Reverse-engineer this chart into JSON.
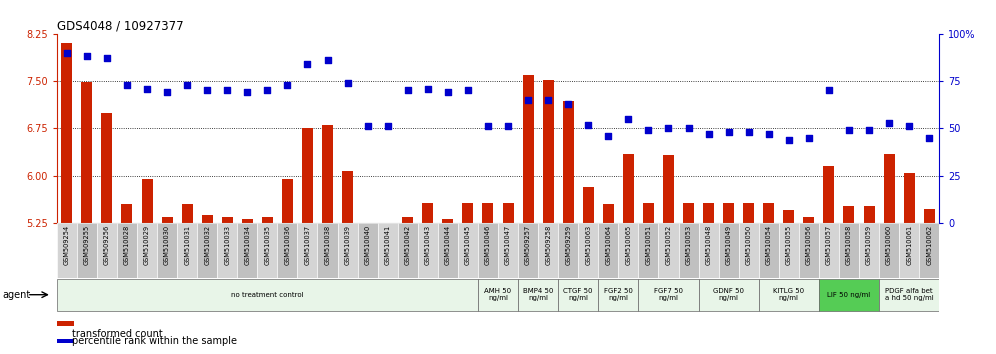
{
  "title": "GDS4048 / 10927377",
  "ylim_left": [
    5.25,
    8.25
  ],
  "ylim_right": [
    0,
    100
  ],
  "yticks_left": [
    5.25,
    6.0,
    6.75,
    7.5,
    8.25
  ],
  "yticks_right": [
    0,
    25,
    50,
    75,
    100
  ],
  "bar_color": "#cc2200",
  "dot_color": "#0000cc",
  "samples": [
    "GSM509254",
    "GSM509255",
    "GSM509256",
    "GSM510028",
    "GSM510029",
    "GSM510030",
    "GSM510031",
    "GSM510032",
    "GSM510033",
    "GSM510034",
    "GSM510035",
    "GSM510036",
    "GSM510037",
    "GSM510038",
    "GSM510039",
    "GSM510040",
    "GSM510041",
    "GSM510042",
    "GSM510043",
    "GSM510044",
    "GSM510045",
    "GSM510046",
    "GSM510047",
    "GSM509257",
    "GSM509258",
    "GSM509259",
    "GSM510063",
    "GSM510064",
    "GSM510065",
    "GSM510051",
    "GSM510052",
    "GSM510053",
    "GSM510048",
    "GSM510049",
    "GSM510050",
    "GSM510054",
    "GSM510055",
    "GSM510056",
    "GSM510057",
    "GSM510058",
    "GSM510059",
    "GSM510060",
    "GSM510061",
    "GSM510062"
  ],
  "bar_values": [
    8.1,
    7.48,
    7.0,
    5.55,
    5.95,
    5.35,
    5.55,
    5.38,
    5.35,
    5.32,
    5.35,
    5.95,
    6.75,
    6.8,
    6.08,
    5.22,
    5.22,
    5.35,
    5.56,
    5.32,
    5.56,
    5.56,
    5.56,
    7.6,
    7.52,
    7.18,
    5.82,
    5.55,
    6.35,
    5.56,
    6.32,
    5.56,
    5.56,
    5.56,
    5.56,
    5.56,
    5.45,
    5.35,
    6.15,
    5.52,
    5.52,
    6.35,
    6.05,
    5.48
  ],
  "dot_values_pct": [
    90,
    88,
    87,
    73,
    71,
    69,
    73,
    70,
    70,
    69,
    70,
    73,
    84,
    86,
    74,
    51,
    51,
    70,
    71,
    69,
    70,
    51,
    51,
    65,
    65,
    63,
    52,
    46,
    55,
    49,
    50,
    50,
    47,
    48,
    48,
    47,
    44,
    45,
    70,
    49,
    49,
    53,
    51,
    45
  ],
  "treatment_groups": [
    {
      "label": "no treatment control",
      "start": 0,
      "end": 21,
      "color": "#e8f5e8"
    },
    {
      "label": "AMH 50\nng/ml",
      "start": 21,
      "end": 23,
      "color": "#e8f5e8"
    },
    {
      "label": "BMP4 50\nng/ml",
      "start": 23,
      "end": 25,
      "color": "#e8f5e8"
    },
    {
      "label": "CTGF 50\nng/ml",
      "start": 25,
      "end": 27,
      "color": "#e8f5e8"
    },
    {
      "label": "FGF2 50\nng/ml",
      "start": 27,
      "end": 29,
      "color": "#e8f5e8"
    },
    {
      "label": "FGF7 50\nng/ml",
      "start": 29,
      "end": 32,
      "color": "#e8f5e8"
    },
    {
      "label": "GDNF 50\nng/ml",
      "start": 32,
      "end": 35,
      "color": "#e8f5e8"
    },
    {
      "label": "KITLG 50\nng/ml",
      "start": 35,
      "end": 38,
      "color": "#e8f5e8"
    },
    {
      "label": "LIF 50 ng/ml",
      "start": 38,
      "end": 41,
      "color": "#55cc55"
    },
    {
      "label": "PDGF alfa bet\na hd 50 ng/ml",
      "start": 41,
      "end": 44,
      "color": "#e8f5e8"
    }
  ],
  "legend_items": [
    {
      "label": "transformed count",
      "color": "#cc2200"
    },
    {
      "label": "percentile rank within the sample",
      "color": "#0000cc"
    }
  ],
  "bg_color": "#ffffff",
  "tick_label_color_left": "#cc2200",
  "tick_label_color_right": "#0000cc",
  "baseline": 5.25
}
